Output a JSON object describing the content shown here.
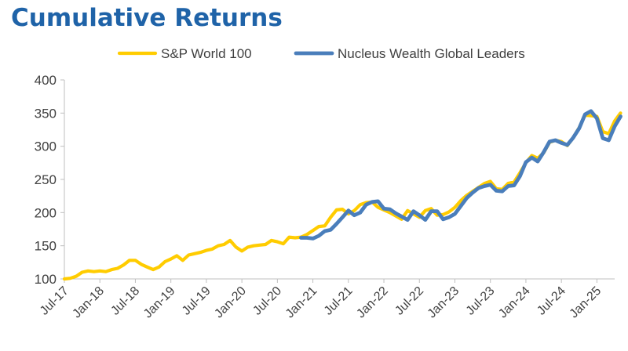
{
  "chart_data": {
    "type": "line",
    "title": "Cumulative Returns",
    "xlabel": "",
    "ylabel": "",
    "ylim": [
      100,
      400
    ],
    "yticks": [
      100,
      150,
      200,
      250,
      300,
      350,
      400
    ],
    "xticks": [
      "Jul-17",
      "Jan-18",
      "Jul-18",
      "Jan-19",
      "Jul-19",
      "Jan-20",
      "Jul-20",
      "Jan-21",
      "Jul-21",
      "Jan-22",
      "Jul-22",
      "Jan-23",
      "Jul-23",
      "Jan-24",
      "Jul-24",
      "Jan-25"
    ],
    "x_start": "Jul-17",
    "x_end": "Apr-25",
    "grid": false,
    "legend_position": "top",
    "colors": {
      "sp": "#ffcc00",
      "nucleus": "#4a7ebb",
      "title": "#1f63a8"
    },
    "series": [
      {
        "name": "S&P World 100",
        "x": [
          "Jul-17",
          "Aug-17",
          "Sep-17",
          "Oct-17",
          "Nov-17",
          "Dec-17",
          "Jan-18",
          "Feb-18",
          "Mar-18",
          "Apr-18",
          "May-18",
          "Jun-18",
          "Jul-18",
          "Aug-18",
          "Sep-18",
          "Oct-18",
          "Nov-18",
          "Dec-18",
          "Jan-19",
          "Feb-19",
          "Mar-19",
          "Apr-19",
          "May-19",
          "Jun-19",
          "Jul-19",
          "Aug-19",
          "Sep-19",
          "Oct-19",
          "Nov-19",
          "Dec-19",
          "Jan-20",
          "Feb-20",
          "Mar-20",
          "Apr-20",
          "May-20",
          "Jun-20",
          "Jul-20",
          "Aug-20",
          "Sep-20",
          "Oct-20",
          "Nov-20",
          "Dec-20",
          "Jan-21",
          "Feb-21",
          "Mar-21",
          "Apr-21",
          "May-21",
          "Jun-21",
          "Jul-21",
          "Aug-21",
          "Sep-21",
          "Oct-21",
          "Nov-21",
          "Dec-21",
          "Jan-22",
          "Feb-22",
          "Mar-22",
          "Apr-22",
          "May-22",
          "Jun-22",
          "Jul-22",
          "Aug-22",
          "Sep-22",
          "Oct-22",
          "Nov-22",
          "Dec-22",
          "Jan-23",
          "Feb-23",
          "Mar-23",
          "Apr-23",
          "May-23",
          "Jun-23",
          "Jul-23",
          "Aug-23",
          "Sep-23",
          "Oct-23",
          "Nov-23",
          "Dec-23",
          "Jan-24",
          "Feb-24",
          "Mar-24",
          "Apr-24",
          "May-24",
          "Jun-24",
          "Jul-24",
          "Aug-24",
          "Sep-24",
          "Oct-24",
          "Nov-24",
          "Dec-24",
          "Jan-25",
          "Feb-25",
          "Mar-25",
          "Apr-25",
          "May-25"
        ],
        "values": [
          100,
          101,
          104,
          110,
          112,
          111,
          112,
          111,
          114,
          116,
          121,
          128,
          128,
          122,
          118,
          114,
          118,
          126,
          130,
          135,
          128,
          136,
          138,
          140,
          143,
          145,
          150,
          152,
          158,
          148,
          142,
          148,
          150,
          151,
          152,
          158,
          156,
          153,
          163,
          162,
          163,
          167,
          173,
          179,
          180,
          193,
          204,
          205,
          198,
          203,
          212,
          215,
          216,
          208,
          204,
          200,
          195,
          190,
          203,
          198,
          193,
          203,
          206,
          196,
          197,
          201,
          208,
          218,
          226,
          232,
          238,
          244,
          247,
          236,
          235,
          244,
          246,
          260,
          275,
          286,
          282,
          290,
          306,
          309,
          307,
          301,
          313,
          328,
          347,
          346,
          345,
          322,
          319,
          338,
          350
        ]
      },
      {
        "name": "Nucleus Wealth Global Leaders",
        "x": [
          "Nov-20",
          "Dec-20",
          "Jan-21",
          "Feb-21",
          "Mar-21",
          "Apr-21",
          "May-21",
          "Jun-21",
          "Jul-21",
          "Aug-21",
          "Sep-21",
          "Oct-21",
          "Nov-21",
          "Dec-21",
          "Jan-22",
          "Feb-22",
          "Mar-22",
          "Apr-22",
          "May-22",
          "Jun-22",
          "Jul-22",
          "Aug-22",
          "Sep-22",
          "Oct-22",
          "Nov-22",
          "Dec-22",
          "Jan-23",
          "Feb-23",
          "Mar-23",
          "Apr-23",
          "May-23",
          "Jun-23",
          "Jul-23",
          "Aug-23",
          "Sep-23",
          "Oct-23",
          "Nov-23",
          "Dec-23",
          "Jan-24",
          "Feb-24",
          "Mar-24",
          "Apr-24",
          "May-24",
          "Jun-24",
          "Jul-24",
          "Aug-24",
          "Sep-24",
          "Oct-24",
          "Nov-24",
          "Dec-24",
          "Jan-25",
          "Feb-25",
          "Mar-25",
          "Apr-25",
          "May-25"
        ],
        "values": [
          162,
          162,
          161,
          165,
          172,
          174,
          183,
          193,
          203,
          196,
          200,
          212,
          216,
          217,
          206,
          205,
          199,
          194,
          189,
          202,
          196,
          189,
          202,
          202,
          190,
          193,
          198,
          210,
          222,
          230,
          237,
          240,
          242,
          233,
          232,
          240,
          241,
          255,
          276,
          283,
          277,
          291,
          307,
          309,
          305,
          302,
          313,
          327,
          348,
          353,
          342,
          312,
          309,
          330,
          345
        ]
      }
    ]
  }
}
